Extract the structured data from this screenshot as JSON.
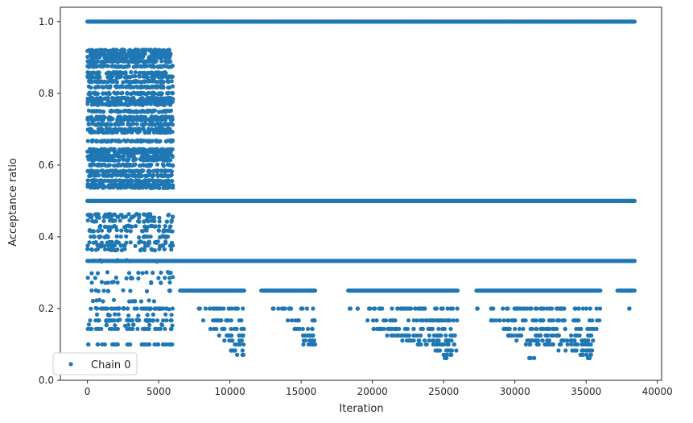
{
  "chart_data": {
    "type": "scatter",
    "title": "",
    "xlabel": "Iteration",
    "ylabel": "Acceptance ratio",
    "xlim": [
      -1900,
      40300
    ],
    "ylim": [
      0.0,
      1.04
    ],
    "x_ticks": [
      0,
      5000,
      10000,
      15000,
      20000,
      25000,
      30000,
      35000,
      40000
    ],
    "x_tick_labels": [
      "0",
      "5000",
      "10000",
      "15000",
      "20000",
      "25000",
      "30000",
      "35000",
      "40000"
    ],
    "y_ticks": [
      0.0,
      0.2,
      0.4,
      0.6,
      0.8,
      1.0
    ],
    "y_tick_labels": [
      "0.0",
      "0.2",
      "0.4",
      "0.6",
      "0.8",
      "1.0"
    ],
    "grid": false,
    "legend": {
      "position": "lower-left",
      "entries": [
        {
          "label": "Chain 0",
          "color": "#1f77b4"
        }
      ]
    },
    "series": [
      {
        "name": "Chain 0",
        "color": "#1f77b4",
        "marker": "circle",
        "x_range": [
          0,
          38400
        ],
        "continuous_levels": [
          {
            "y": 1.0,
            "x_ranges": [
              [
                0,
                38400
              ]
            ]
          },
          {
            "y": 0.5,
            "x_ranges": [
              [
                0,
                38400
              ]
            ]
          },
          {
            "y": 0.333,
            "x_ranges": [
              [
                0,
                38400
              ]
            ]
          },
          {
            "y": 0.25,
            "x_ranges": [
              [
                6500,
                11000
              ],
              [
                12200,
                16000
              ],
              [
                18300,
                26000
              ],
              [
                27300,
                36000
              ],
              [
                37200,
                38400
              ]
            ]
          }
        ],
        "sparse_levels": [
          {
            "y": 0.2,
            "x_ranges": [
              [
                0,
                6000
              ],
              [
                7500,
                11000
              ],
              [
                13000,
                16000
              ],
              [
                18300,
                26000
              ],
              [
                27300,
                36000
              ],
              [
                38000,
                38300
              ]
            ]
          },
          {
            "y": 0.167,
            "x_ranges": [
              [
                0,
                6000
              ],
              [
                8000,
                11000
              ],
              [
                14000,
                16000
              ],
              [
                19500,
                26000
              ],
              [
                28000,
                36000
              ]
            ]
          },
          {
            "y": 0.143,
            "x_ranges": [
              [
                0,
                6000
              ],
              [
                8500,
                11000
              ],
              [
                14500,
                16000
              ],
              [
                20000,
                26000
              ],
              [
                29000,
                36000
              ]
            ]
          },
          {
            "y": 0.125,
            "x_ranges": [
              [
                9000,
                11000
              ],
              [
                15000,
                16000
              ],
              [
                21000,
                26000
              ],
              [
                29500,
                35500
              ]
            ]
          },
          {
            "y": 0.111,
            "x_ranges": [
              [
                9500,
                11000
              ],
              [
                15000,
                16000
              ],
              [
                22000,
                26000
              ],
              [
                30000,
                35500
              ]
            ]
          },
          {
            "y": 0.1,
            "x_ranges": [
              [
                0,
                6000
              ],
              [
                10000,
                11000
              ],
              [
                15000,
                16000
              ],
              [
                23000,
                26000
              ],
              [
                30500,
                35500
              ]
            ]
          },
          {
            "y": 0.083,
            "x_ranges": [
              [
                10000,
                11000
              ],
              [
                24000,
                26000
              ],
              [
                33000,
                35500
              ]
            ]
          },
          {
            "y": 0.071,
            "x_ranges": [
              [
                10500,
                11000
              ],
              [
                25000,
                26000
              ],
              [
                34500,
                35500
              ]
            ]
          },
          {
            "y": 0.062,
            "x_ranges": [
              [
                25000,
                25500
              ],
              [
                31000,
                31500
              ],
              [
                35000,
                35500
              ]
            ]
          }
        ],
        "dense_region": {
          "x_range": [
            0,
            6000
          ],
          "levels": [
            0.92,
            0.91,
            0.9,
            0.889,
            0.875,
            0.857,
            0.846,
            0.833,
            0.818,
            0.8,
            0.786,
            0.778,
            0.769,
            0.75,
            0.733,
            0.727,
            0.714,
            0.7,
            0.692,
            0.667,
            0.643,
            0.636,
            0.625,
            0.615,
            0.6,
            0.583,
            0.571,
            0.556,
            0.545,
            0.538,
            0.462,
            0.455,
            0.444,
            0.429,
            0.417,
            0.4,
            0.385,
            0.375,
            0.364,
            0.333,
            0.3,
            0.286,
            0.273,
            0.25,
            0.222,
            0.2,
            0.182,
            0.167,
            0.154
          ]
        }
      }
    ]
  }
}
